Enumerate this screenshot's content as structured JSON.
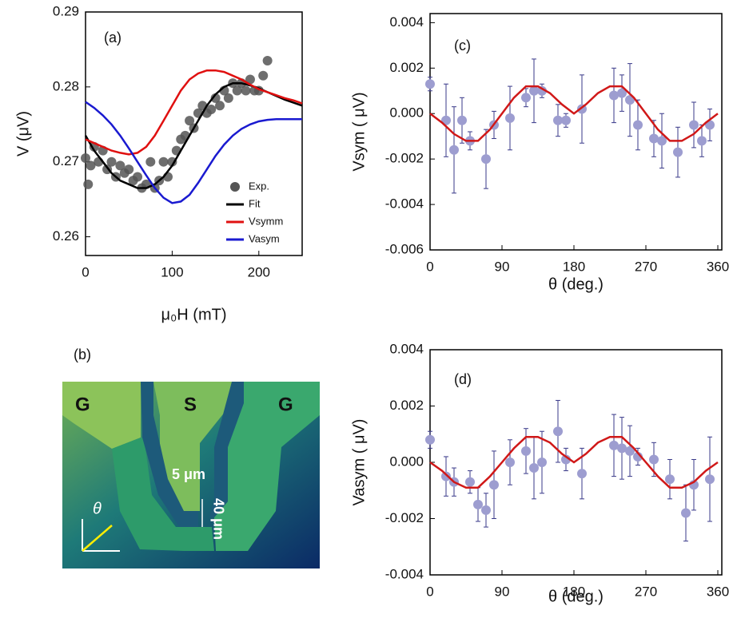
{
  "chart_data": [
    {
      "type": "scatter",
      "panel_label": "(a)",
      "x_label": "μ₀H (mT)",
      "y_label": "V (μV)",
      "xlim": [
        0,
        250
      ],
      "ylim": [
        0.2575,
        0.29
      ],
      "xticks": [
        0,
        100,
        200
      ],
      "yticks": [
        0.26,
        0.27,
        0.28,
        0.29
      ],
      "legend": "lower right",
      "series": [
        {
          "name": "Exp.",
          "style": "points",
          "color": "#555555",
          "x": [
            0,
            3,
            6,
            10,
            15,
            20,
            25,
            30,
            35,
            40,
            45,
            50,
            55,
            60,
            65,
            70,
            75,
            80,
            85,
            90,
            95,
            100,
            105,
            110,
            115,
            120,
            125,
            130,
            135,
            140,
            145,
            150,
            155,
            160,
            165,
            170,
            175,
            180,
            185,
            190,
            195,
            200,
            205,
            210
          ],
          "values": [
            0.2705,
            0.267,
            0.2695,
            0.272,
            0.27,
            0.2715,
            0.269,
            0.27,
            0.268,
            0.2695,
            0.2685,
            0.269,
            0.2675,
            0.268,
            0.2665,
            0.267,
            0.27,
            0.2665,
            0.2675,
            0.27,
            0.268,
            0.27,
            0.2715,
            0.273,
            0.2735,
            0.2755,
            0.2745,
            0.2765,
            0.2775,
            0.2765,
            0.277,
            0.2785,
            0.2775,
            0.2795,
            0.2785,
            0.2805,
            0.2795,
            0.2805,
            0.2795,
            0.281,
            0.2795,
            0.2795,
            0.2815,
            0.2835
          ]
        },
        {
          "name": "Fit",
          "style": "line",
          "color": "#000000",
          "x": [
            0,
            10,
            20,
            30,
            40,
            50,
            60,
            70,
            80,
            90,
            100,
            110,
            120,
            130,
            140,
            150,
            160,
            170,
            180,
            190,
            200,
            210,
            220,
            230,
            240,
            250
          ],
          "values": [
            0.2735,
            0.2715,
            0.27,
            0.2685,
            0.2675,
            0.267,
            0.2665,
            0.2665,
            0.267,
            0.268,
            0.2695,
            0.2715,
            0.2735,
            0.2755,
            0.2775,
            0.279,
            0.28,
            0.2805,
            0.2805,
            0.2802,
            0.2798,
            0.2793,
            0.2788,
            0.2783,
            0.2779,
            0.2775
          ]
        },
        {
          "name": "Vsymm",
          "style": "line",
          "color": "#e01010",
          "x": [
            0,
            10,
            20,
            30,
            40,
            50,
            60,
            70,
            80,
            90,
            100,
            110,
            120,
            130,
            140,
            150,
            160,
            170,
            180,
            190,
            200,
            210,
            220,
            230,
            240,
            250
          ],
          "values": [
            0.273,
            0.2725,
            0.272,
            0.2715,
            0.2712,
            0.271,
            0.2712,
            0.272,
            0.2735,
            0.2755,
            0.2775,
            0.2795,
            0.281,
            0.2818,
            0.2822,
            0.2822,
            0.282,
            0.2815,
            0.281,
            0.2803,
            0.2797,
            0.2793,
            0.2789,
            0.2785,
            0.2782,
            0.2778
          ]
        },
        {
          "name": "Vasym",
          "style": "line",
          "color": "#1a1ad0",
          "x": [
            0,
            10,
            20,
            30,
            40,
            50,
            60,
            70,
            80,
            90,
            100,
            110,
            120,
            130,
            140,
            150,
            160,
            170,
            180,
            190,
            200,
            210,
            220,
            230,
            240,
            250
          ],
          "values": [
            0.278,
            0.2772,
            0.2762,
            0.275,
            0.2735,
            0.2718,
            0.27,
            0.2682,
            0.2665,
            0.2652,
            0.2645,
            0.2647,
            0.2656,
            0.2672,
            0.269,
            0.2708,
            0.2723,
            0.2735,
            0.2744,
            0.275,
            0.2754,
            0.2756,
            0.2757,
            0.2757,
            0.2757,
            0.2757
          ]
        }
      ]
    },
    {
      "type": "scatter",
      "panel_label": "(c)",
      "x_label": "θ (deg.)",
      "y_label": "Vsym ( μV)",
      "xlim": [
        0,
        365
      ],
      "ylim": [
        -0.006,
        0.0044
      ],
      "xticks": [
        0,
        90,
        180,
        270,
        360
      ],
      "yticks": [
        -0.006,
        -0.004,
        -0.002,
        {
          "value": 0,
          "label": "0.000"
        },
        0.002,
        0.004
      ],
      "series": [
        {
          "style": "points",
          "color": "#9d9dd0",
          "x": [
            0,
            20,
            30,
            40,
            50,
            70,
            80,
            100,
            120,
            130,
            140,
            160,
            170,
            190,
            230,
            240,
            250,
            260,
            280,
            290,
            310,
            330,
            340,
            350
          ],
          "values": [
            0.0013,
            -0.0003,
            -0.0016,
            -0.0003,
            -0.0012,
            -0.002,
            -0.0005,
            -0.0002,
            0.0007,
            0.001,
            0.001,
            -0.0003,
            -0.0003,
            0.0002,
            0.0008,
            0.0009,
            0.0006,
            -0.0005,
            -0.0011,
            -0.0012,
            -0.0017,
            -0.0005,
            -0.0012,
            -0.0005
          ],
          "errors": [
            0.0003,
            0.0016,
            0.0019,
            0.001,
            0.0004,
            0.0013,
            0.0006,
            0.0014,
            0.0004,
            0.0014,
            0.0003,
            0.0007,
            0.0003,
            0.0015,
            0.0012,
            0.0008,
            0.0016,
            0.0011,
            0.0008,
            0.0012,
            0.0011,
            0.001,
            0.0007,
            0.0007
          ]
        },
        {
          "style": "line",
          "color": "#d01818",
          "x": [
            0,
            15,
            30,
            45,
            60,
            75,
            90,
            105,
            120,
            135,
            150,
            165,
            180,
            195,
            210,
            225,
            240,
            255,
            270,
            285,
            300,
            315,
            330,
            345,
            360
          ],
          "values": [
            0,
            -0.0004,
            -0.0009,
            -0.0012,
            -0.0012,
            -0.0007,
            0,
            0.0007,
            0.0012,
            0.0012,
            0.0009,
            0.0004,
            0,
            0.0004,
            0.0009,
            0.0012,
            0.0012,
            0.0007,
            0,
            -0.0007,
            -0.0012,
            -0.0012,
            -0.0009,
            -0.0004,
            0
          ]
        }
      ]
    },
    {
      "type": "scatter",
      "panel_label": "(d)",
      "x_label": "θ (deg.)",
      "y_label": "Vasym ( μV)",
      "xlim": [
        0,
        365
      ],
      "ylim": [
        -0.004,
        0.004
      ],
      "xticks": [
        0,
        90,
        180,
        270,
        360
      ],
      "yticks": [
        -0.004,
        -0.002,
        {
          "value": 0,
          "label": "0.000"
        },
        0.002,
        0.004
      ],
      "series": [
        {
          "style": "points",
          "color": "#9d9dd0",
          "x": [
            0,
            20,
            30,
            50,
            60,
            70,
            80,
            100,
            120,
            130,
            140,
            160,
            170,
            190,
            230,
            240,
            250,
            260,
            280,
            300,
            320,
            330,
            350
          ],
          "values": [
            0.0008,
            -0.0005,
            -0.0007,
            -0.0007,
            -0.0015,
            -0.0017,
            -0.0008,
            0,
            0.0004,
            -0.0002,
            0,
            0.0011,
            0.0001,
            -0.0004,
            0.0006,
            0.0005,
            0.0004,
            0.0002,
            0.0001,
            -0.0006,
            -0.0018,
            -0.0008,
            -0.0006
          ],
          "errors": [
            0.0003,
            0.0007,
            0.0005,
            0.0004,
            0.0006,
            0.0006,
            0.0012,
            0.0008,
            0.0008,
            0.0011,
            0.0011,
            0.0011,
            0.0004,
            0.0009,
            0.0011,
            0.0011,
            0.0009,
            0.0003,
            0.0006,
            0.0007,
            0.001,
            0.0009,
            0.0015
          ]
        },
        {
          "style": "line",
          "color": "#d01818",
          "x": [
            0,
            15,
            30,
            45,
            60,
            75,
            90,
            105,
            120,
            135,
            150,
            165,
            180,
            195,
            210,
            225,
            240,
            255,
            270,
            285,
            300,
            315,
            330,
            345,
            360
          ],
          "values": [
            0,
            -0.0003,
            -0.0007,
            -0.0009,
            -0.0009,
            -0.0005,
            0,
            0.0005,
            0.0009,
            0.0009,
            0.0007,
            0.0003,
            0,
            0.0003,
            0.0007,
            0.0009,
            0.0009,
            0.0005,
            0,
            -0.0005,
            -0.0009,
            -0.0009,
            -0.0007,
            -0.0003,
            0
          ]
        }
      ]
    }
  ],
  "image_labels": {
    "panel_label": "(b)",
    "left_pad": "G",
    "center_pad": "S",
    "right_pad": "G",
    "gap": "5 μm",
    "length": "40 μm",
    "angle": "θ"
  }
}
